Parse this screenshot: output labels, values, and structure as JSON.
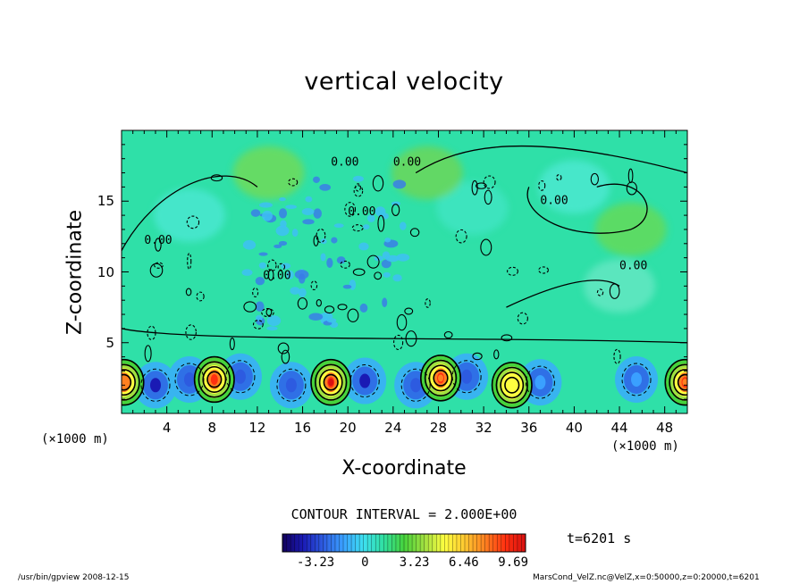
{
  "chart_data": {
    "type": "heatmap",
    "title": "vertical velocity",
    "xlabel": "X-coordinate",
    "ylabel": "Z-coordinate",
    "x_unit": "(×1000 m)",
    "xlim": [
      0,
      50
    ],
    "ylim": [
      0,
      20
    ],
    "x_ticks": [
      "4",
      "8",
      "12",
      "16",
      "20",
      "24",
      "28",
      "32",
      "36",
      "40",
      "44",
      "48"
    ],
    "y_ticks": [
      "5",
      "10",
      "15"
    ],
    "contour_interval": "CONTOUR INTERVAL = 2.000E+00",
    "contour_labels": [
      "0.00",
      "0.00",
      "0.00",
      "0.00",
      "0.00",
      "0.00",
      "0.00"
    ],
    "colorbar": {
      "min": -5.4,
      "max": 10.5,
      "tick_labels": [
        "-3.23",
        "0",
        "3.23",
        "6.46",
        "9.69"
      ],
      "tick_values": [
        -3.23,
        0,
        3.23,
        6.46,
        9.69
      ]
    },
    "time": "t=6201 s",
    "updrafts": [
      {
        "x": 0.2,
        "z": 2.2,
        "w": 7.5
      },
      {
        "x": 8.2,
        "z": 2.4,
        "w": 9.0
      },
      {
        "x": 18.5,
        "z": 2.2,
        "w": 10.0
      },
      {
        "x": 28.2,
        "z": 2.5,
        "w": 8.5
      },
      {
        "x": 34.5,
        "z": 2.0,
        "w": 5.0
      },
      {
        "x": 49.8,
        "z": 2.2,
        "w": 8.0
      }
    ],
    "downdrafts": [
      {
        "x": 3.0,
        "z": 2.0,
        "w": -3.5
      },
      {
        "x": 6.0,
        "z": 2.4,
        "w": -3.0
      },
      {
        "x": 10.5,
        "z": 2.6,
        "w": -2.5
      },
      {
        "x": 15.0,
        "z": 2.0,
        "w": -3.0
      },
      {
        "x": 21.5,
        "z": 2.3,
        "w": -3.5
      },
      {
        "x": 26.0,
        "z": 2.0,
        "w": -3.0
      },
      {
        "x": 30.5,
        "z": 2.6,
        "w": -3.0
      },
      {
        "x": 37.0,
        "z": 2.2,
        "w": -2.0
      },
      {
        "x": 45.5,
        "z": 2.4,
        "w": -2.0
      }
    ]
  },
  "colorbar_palette": [
    "#12005a",
    "#1a1ab4",
    "#2d5be0",
    "#3aa0ff",
    "#3de0f0",
    "#30e0a0",
    "#46d23c",
    "#a0e040",
    "#ffff40",
    "#ffc830",
    "#ff8020",
    "#ff3010",
    "#d81010"
  ],
  "footer": {
    "left": "/usr/bin/gpview   2008-12-15",
    "right": "MarsCond_VelZ.nc@VelZ,x=0:50000,z=0:20000,t=6201"
  }
}
